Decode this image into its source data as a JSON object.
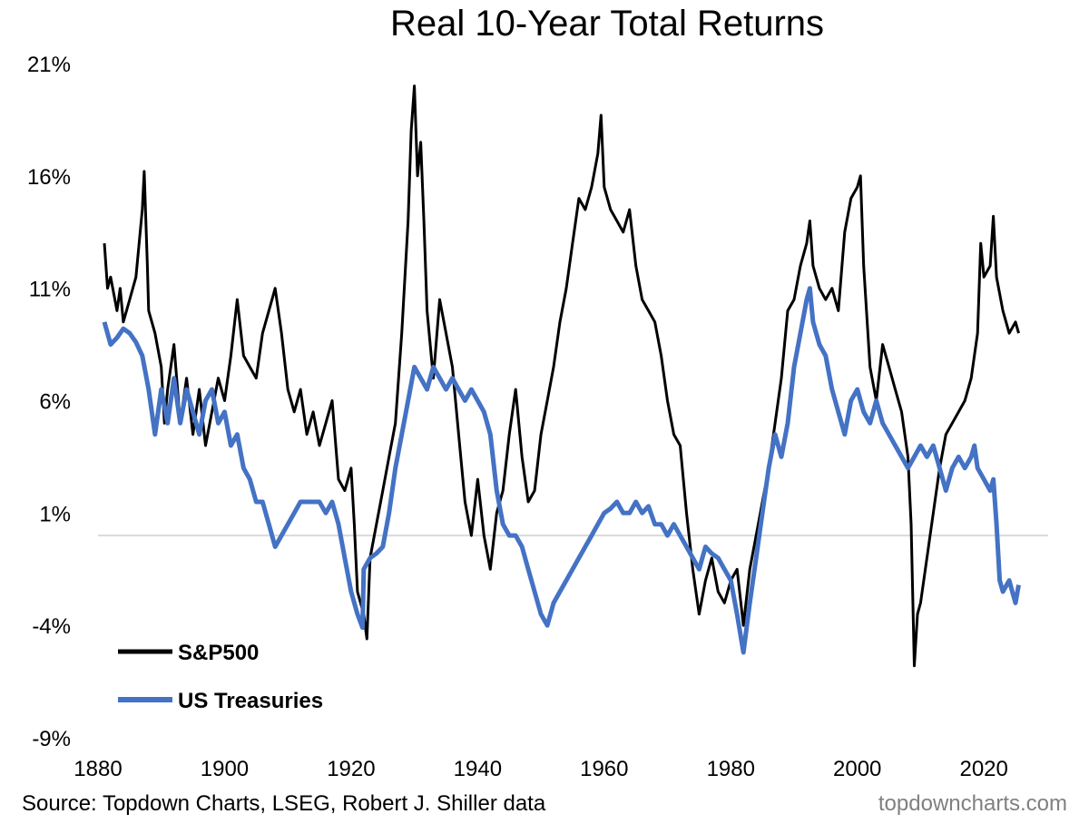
{
  "title": "Real 10-Year Total Returns",
  "source": "Source: Topdown Charts, LSEG, Robert J. Shiller data",
  "watermark": "topdowncharts.com",
  "chart_data": {
    "type": "line",
    "title": "Real 10-Year Total Returns",
    "xlabel": "",
    "ylabel": "",
    "xlim": [
      1880,
      2026
    ],
    "ylim": [
      -9,
      21
    ],
    "x_ticks": [
      1880,
      1900,
      1920,
      1940,
      1960,
      1980,
      2000,
      2020
    ],
    "y_ticks": [
      "21%",
      "16%",
      "11%",
      "6%",
      "1%",
      "-4%",
      "-9%"
    ],
    "y_tick_values": [
      21,
      16,
      11,
      6,
      1,
      -4,
      -9
    ],
    "reference_line": 0,
    "grid": false,
    "legend_position": "bottom-left",
    "colors": {
      "sp500": "#000000",
      "treasuries": "#4472C4",
      "reference": "#d9d9d9"
    },
    "series": [
      {
        "name": "S&P500",
        "color": "#000000",
        "points": [
          [
            1881,
            13.0
          ],
          [
            1881.5,
            11.0
          ],
          [
            1882,
            11.5
          ],
          [
            1883,
            10.0
          ],
          [
            1883.5,
            11.0
          ],
          [
            1884,
            9.5
          ],
          [
            1885,
            10.5
          ],
          [
            1886,
            11.5
          ],
          [
            1887,
            14.5
          ],
          [
            1887.3,
            16.2
          ],
          [
            1887.8,
            12.0
          ],
          [
            1888,
            10.0
          ],
          [
            1889,
            9.0
          ],
          [
            1890,
            7.5
          ],
          [
            1890.5,
            5.0
          ],
          [
            1891,
            6.5
          ],
          [
            1892,
            8.5
          ],
          [
            1893,
            5.0
          ],
          [
            1894,
            7.0
          ],
          [
            1895,
            4.5
          ],
          [
            1896,
            6.5
          ],
          [
            1897,
            4.0
          ],
          [
            1898,
            5.5
          ],
          [
            1899,
            7.0
          ],
          [
            1900,
            6.0
          ],
          [
            1901,
            8.0
          ],
          [
            1902,
            10.5
          ],
          [
            1903,
            8.0
          ],
          [
            1904,
            7.5
          ],
          [
            1905,
            7.0
          ],
          [
            1906,
            9.0
          ],
          [
            1907,
            10.0
          ],
          [
            1908,
            11.0
          ],
          [
            1909,
            9.0
          ],
          [
            1910,
            6.5
          ],
          [
            1911,
            5.5
          ],
          [
            1912,
            6.5
          ],
          [
            1913,
            4.5
          ],
          [
            1914,
            5.5
          ],
          [
            1915,
            4.0
          ],
          [
            1916,
            5.0
          ],
          [
            1917,
            6.0
          ],
          [
            1918,
            2.5
          ],
          [
            1919,
            2.0
          ],
          [
            1920,
            3.0
          ],
          [
            1920.5,
            0.5
          ],
          [
            1921,
            -2.5
          ],
          [
            1922,
            -3.5
          ],
          [
            1922.5,
            -4.6
          ],
          [
            1923,
            -1.0
          ],
          [
            1924,
            0.5
          ],
          [
            1925,
            2.0
          ],
          [
            1926,
            3.5
          ],
          [
            1927,
            5.0
          ],
          [
            1928,
            9.0
          ],
          [
            1929,
            14.0
          ],
          [
            1929.5,
            18.0
          ],
          [
            1930,
            20.0
          ],
          [
            1930.5,
            16.0
          ],
          [
            1931,
            17.5
          ],
          [
            1931.5,
            14.0
          ],
          [
            1932,
            10.0
          ],
          [
            1933,
            7.0
          ],
          [
            1934,
            10.5
          ],
          [
            1935,
            9.0
          ],
          [
            1936,
            7.5
          ],
          [
            1937,
            4.5
          ],
          [
            1938,
            1.5
          ],
          [
            1939,
            0.0
          ],
          [
            1940,
            2.5
          ],
          [
            1941,
            0.0
          ],
          [
            1942,
            -1.5
          ],
          [
            1943,
            1.0
          ],
          [
            1944,
            2.0
          ],
          [
            1945,
            4.5
          ],
          [
            1946,
            6.5
          ],
          [
            1947,
            3.5
          ],
          [
            1948,
            1.5
          ],
          [
            1949,
            2.0
          ],
          [
            1950,
            4.5
          ],
          [
            1951,
            6.0
          ],
          [
            1952,
            7.5
          ],
          [
            1953,
            9.5
          ],
          [
            1954,
            11.0
          ],
          [
            1955,
            13.0
          ],
          [
            1956,
            15.0
          ],
          [
            1957,
            14.5
          ],
          [
            1958,
            15.5
          ],
          [
            1959,
            17.0
          ],
          [
            1959.5,
            18.7
          ],
          [
            1960,
            15.5
          ],
          [
            1961,
            14.5
          ],
          [
            1962,
            14.0
          ],
          [
            1963,
            13.5
          ],
          [
            1964,
            14.5
          ],
          [
            1965,
            12.0
          ],
          [
            1966,
            10.5
          ],
          [
            1967,
            10.0
          ],
          [
            1968,
            9.5
          ],
          [
            1969,
            8.0
          ],
          [
            1970,
            6.0
          ],
          [
            1971,
            4.5
          ],
          [
            1972,
            4.0
          ],
          [
            1973,
            1.0
          ],
          [
            1974,
            -1.5
          ],
          [
            1975,
            -3.5
          ],
          [
            1976,
            -2.0
          ],
          [
            1977,
            -1.0
          ],
          [
            1978,
            -2.5
          ],
          [
            1979,
            -3.0
          ],
          [
            1980,
            -2.0
          ],
          [
            1981,
            -1.5
          ],
          [
            1982,
            -4.0
          ],
          [
            1983,
            -1.5
          ],
          [
            1984,
            0.0
          ],
          [
            1985,
            1.5
          ],
          [
            1986,
            3.0
          ],
          [
            1987,
            5.0
          ],
          [
            1988,
            7.0
          ],
          [
            1989,
            10.0
          ],
          [
            1990,
            10.5
          ],
          [
            1991,
            12.0
          ],
          [
            1992,
            13.0
          ],
          [
            1992.5,
            14.0
          ],
          [
            1993,
            12.0
          ],
          [
            1994,
            11.0
          ],
          [
            1995,
            10.5
          ],
          [
            1996,
            11.0
          ],
          [
            1997,
            10.0
          ],
          [
            1998,
            13.5
          ],
          [
            1999,
            15.0
          ],
          [
            2000,
            15.5
          ],
          [
            2000.5,
            16.0
          ],
          [
            2001,
            12.0
          ],
          [
            2002,
            7.5
          ],
          [
            2003,
            6.0
          ],
          [
            2004,
            8.5
          ],
          [
            2005,
            7.5
          ],
          [
            2006,
            6.5
          ],
          [
            2007,
            5.5
          ],
          [
            2008,
            3.5
          ],
          [
            2008.5,
            0.5
          ],
          [
            2009,
            -5.8
          ],
          [
            2009.5,
            -3.5
          ],
          [
            2010,
            -3.0
          ],
          [
            2011,
            -1.0
          ],
          [
            2012,
            1.0
          ],
          [
            2013,
            3.0
          ],
          [
            2014,
            4.5
          ],
          [
            2015,
            5.0
          ],
          [
            2016,
            5.5
          ],
          [
            2017,
            6.0
          ],
          [
            2018,
            7.0
          ],
          [
            2019,
            9.0
          ],
          [
            2019.5,
            13.0
          ],
          [
            2020,
            11.5
          ],
          [
            2021,
            12.0
          ],
          [
            2021.5,
            14.2
          ],
          [
            2022,
            11.5
          ],
          [
            2023,
            10.0
          ],
          [
            2024,
            9.0
          ],
          [
            2025,
            9.5
          ],
          [
            2025.5,
            9.0
          ]
        ]
      },
      {
        "name": "US Treasuries",
        "color": "#4472C4",
        "points": [
          [
            1881,
            9.5
          ],
          [
            1882,
            8.5
          ],
          [
            1883,
            8.8
          ],
          [
            1884,
            9.2
          ],
          [
            1885,
            9.0
          ],
          [
            1886,
            8.6
          ],
          [
            1887,
            8.0
          ],
          [
            1888,
            6.5
          ],
          [
            1889,
            4.5
          ],
          [
            1890,
            6.5
          ],
          [
            1891,
            5.0
          ],
          [
            1892,
            7.0
          ],
          [
            1893,
            5.0
          ],
          [
            1894,
            6.5
          ],
          [
            1895,
            5.5
          ],
          [
            1896,
            4.5
          ],
          [
            1897,
            6.0
          ],
          [
            1898,
            6.5
          ],
          [
            1899,
            5.0
          ],
          [
            1900,
            5.5
          ],
          [
            1901,
            4.0
          ],
          [
            1902,
            4.5
          ],
          [
            1903,
            3.0
          ],
          [
            1904,
            2.5
          ],
          [
            1905,
            1.5
          ],
          [
            1906,
            1.5
          ],
          [
            1907,
            0.5
          ],
          [
            1908,
            -0.5
          ],
          [
            1909,
            0.0
          ],
          [
            1910,
            0.5
          ],
          [
            1911,
            1.0
          ],
          [
            1912,
            1.5
          ],
          [
            1913,
            1.5
          ],
          [
            1914,
            1.5
          ],
          [
            1915,
            1.5
          ],
          [
            1916,
            1.0
          ],
          [
            1917,
            1.5
          ],
          [
            1918,
            0.5
          ],
          [
            1919,
            -1.0
          ],
          [
            1920,
            -2.5
          ],
          [
            1921,
            -3.5
          ],
          [
            1921.8,
            -4.1
          ],
          [
            1922,
            -1.5
          ],
          [
            1923,
            -1.0
          ],
          [
            1924,
            -0.8
          ],
          [
            1925,
            -0.5
          ],
          [
            1926,
            1.0
          ],
          [
            1927,
            3.0
          ],
          [
            1928,
            4.5
          ],
          [
            1929,
            6.0
          ],
          [
            1930,
            7.5
          ],
          [
            1931,
            7.0
          ],
          [
            1932,
            6.5
          ],
          [
            1933,
            7.5
          ],
          [
            1934,
            7.0
          ],
          [
            1935,
            6.5
          ],
          [
            1936,
            7.0
          ],
          [
            1937,
            6.5
          ],
          [
            1938,
            6.0
          ],
          [
            1939,
            6.5
          ],
          [
            1940,
            6.0
          ],
          [
            1941,
            5.5
          ],
          [
            1942,
            4.5
          ],
          [
            1943,
            2.0
          ],
          [
            1944,
            0.5
          ],
          [
            1945,
            0.0
          ],
          [
            1946,
            0.0
          ],
          [
            1947,
            -0.5
          ],
          [
            1948,
            -1.5
          ],
          [
            1949,
            -2.5
          ],
          [
            1950,
            -3.5
          ],
          [
            1951,
            -4.0
          ],
          [
            1952,
            -3.0
          ],
          [
            1953,
            -2.5
          ],
          [
            1954,
            -2.0
          ],
          [
            1955,
            -1.5
          ],
          [
            1956,
            -1.0
          ],
          [
            1957,
            -0.5
          ],
          [
            1958,
            0.0
          ],
          [
            1959,
            0.5
          ],
          [
            1960,
            1.0
          ],
          [
            1961,
            1.2
          ],
          [
            1962,
            1.5
          ],
          [
            1963,
            1.0
          ],
          [
            1964,
            1.0
          ],
          [
            1965,
            1.5
          ],
          [
            1966,
            1.0
          ],
          [
            1967,
            1.3
          ],
          [
            1968,
            0.5
          ],
          [
            1969,
            0.5
          ],
          [
            1970,
            0.0
          ],
          [
            1971,
            0.5
          ],
          [
            1972,
            0.0
          ],
          [
            1973,
            -0.5
          ],
          [
            1974,
            -1.0
          ],
          [
            1975,
            -1.5
          ],
          [
            1976,
            -0.5
          ],
          [
            1977,
            -0.8
          ],
          [
            1978,
            -1.0
          ],
          [
            1979,
            -1.5
          ],
          [
            1980,
            -2.0
          ],
          [
            1981,
            -3.5
          ],
          [
            1982,
            -5.2
          ],
          [
            1983,
            -3.0
          ],
          [
            1984,
            -1.0
          ],
          [
            1985,
            1.0
          ],
          [
            1986,
            3.0
          ],
          [
            1987,
            4.5
          ],
          [
            1988,
            3.5
          ],
          [
            1989,
            5.0
          ],
          [
            1990,
            7.5
          ],
          [
            1991,
            9.0
          ],
          [
            1992,
            10.5
          ],
          [
            1992.5,
            11.0
          ],
          [
            1993,
            9.5
          ],
          [
            1994,
            8.5
          ],
          [
            1995,
            8.0
          ],
          [
            1996,
            6.5
          ],
          [
            1997,
            5.5
          ],
          [
            1998,
            4.5
          ],
          [
            1999,
            6.0
          ],
          [
            2000,
            6.5
          ],
          [
            2001,
            5.5
          ],
          [
            2002,
            5.0
          ],
          [
            2003,
            6.0
          ],
          [
            2004,
            5.0
          ],
          [
            2005,
            4.5
          ],
          [
            2006,
            4.0
          ],
          [
            2007,
            3.5
          ],
          [
            2008,
            3.0
          ],
          [
            2009,
            3.5
          ],
          [
            2010,
            4.0
          ],
          [
            2011,
            3.5
          ],
          [
            2012,
            4.0
          ],
          [
            2013,
            3.0
          ],
          [
            2014,
            2.0
          ],
          [
            2015,
            3.0
          ],
          [
            2016,
            3.5
          ],
          [
            2017,
            3.0
          ],
          [
            2018,
            3.5
          ],
          [
            2018.5,
            4.0
          ],
          [
            2019,
            3.0
          ],
          [
            2020,
            2.5
          ],
          [
            2021,
            2.0
          ],
          [
            2021.5,
            2.5
          ],
          [
            2022,
            0.5
          ],
          [
            2022.5,
            -2.0
          ],
          [
            2023,
            -2.5
          ],
          [
            2024,
            -2.0
          ],
          [
            2024.5,
            -2.5
          ],
          [
            2025,
            -3.0
          ],
          [
            2025.5,
            -2.2
          ]
        ]
      }
    ],
    "legend": [
      "S&P500",
      "US Treasuries"
    ]
  }
}
